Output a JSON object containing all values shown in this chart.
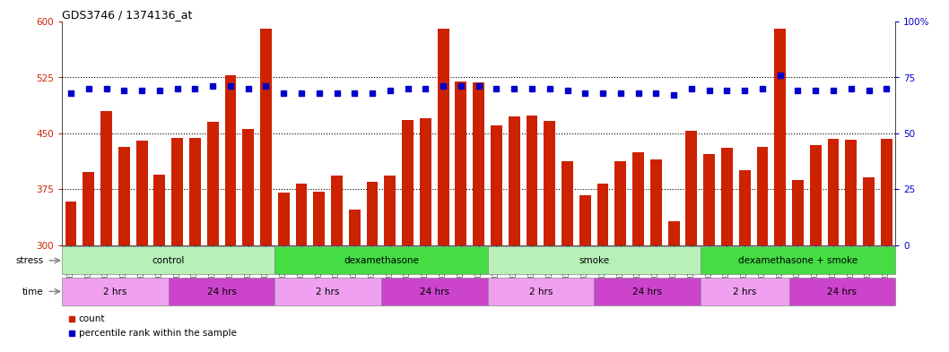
{
  "title": "GDS3746 / 1374136_at",
  "samples": [
    "GSM389536",
    "GSM389537",
    "GSM389538",
    "GSM389539",
    "GSM389540",
    "GSM389541",
    "GSM389530",
    "GSM389531",
    "GSM389532",
    "GSM389533",
    "GSM389534",
    "GSM389535",
    "GSM389560",
    "GSM389561",
    "GSM389562",
    "GSM389563",
    "GSM389564",
    "GSM389565",
    "GSM389554",
    "GSM389555",
    "GSM389556",
    "GSM389557",
    "GSM389558",
    "GSM389559",
    "GSM389571",
    "GSM389572",
    "GSM389573",
    "GSM389574",
    "GSM389575",
    "GSM389576",
    "GSM389566",
    "GSM389567",
    "GSM389568",
    "GSM389569",
    "GSM389570",
    "GSM389548",
    "GSM389549",
    "GSM389550",
    "GSM389551",
    "GSM389552",
    "GSM389553",
    "GSM389542",
    "GSM389543",
    "GSM389544",
    "GSM389545",
    "GSM389546",
    "GSM389547"
  ],
  "counts": [
    358,
    398,
    480,
    432,
    440,
    395,
    444,
    444,
    465,
    528,
    456,
    590,
    370,
    383,
    372,
    393,
    348,
    385,
    393,
    468,
    470,
    590,
    520,
    518,
    460,
    473,
    474,
    466,
    413,
    367,
    383,
    413,
    425,
    415,
    332,
    453,
    422,
    430,
    401,
    432,
    590,
    387,
    434,
    443,
    441,
    391,
    443
  ],
  "percentile_ranks": [
    68,
    70,
    70,
    69,
    69,
    69,
    70,
    70,
    71,
    71,
    70,
    71,
    68,
    68,
    68,
    68,
    68,
    68,
    69,
    70,
    70,
    71,
    71,
    71,
    70,
    70,
    70,
    70,
    69,
    68,
    68,
    68,
    68,
    68,
    67,
    70,
    69,
    69,
    69,
    70,
    76,
    69,
    69,
    69,
    70,
    69,
    70
  ],
  "ylim_left": [
    300,
    600
  ],
  "ylim_right": [
    0,
    100
  ],
  "yticks_left": [
    300,
    375,
    450,
    525,
    600
  ],
  "yticks_right": [
    0,
    25,
    50,
    75,
    100
  ],
  "bar_color": "#cc2200",
  "dot_color": "#0000cc",
  "groups": [
    {
      "label": "control",
      "start": 0,
      "end": 11
    },
    {
      "label": "dexamethasone",
      "start": 12,
      "end": 23
    },
    {
      "label": "smoke",
      "start": 24,
      "end": 35
    },
    {
      "label": "dexamethasone + smoke",
      "start": 36,
      "end": 46
    }
  ],
  "time_groups": [
    {
      "label": "2 hrs",
      "start": 0,
      "end": 5,
      "light": true
    },
    {
      "label": "24 hrs",
      "start": 6,
      "end": 11,
      "light": false
    },
    {
      "label": "2 hrs",
      "start": 12,
      "end": 17,
      "light": true
    },
    {
      "label": "24 hrs",
      "start": 18,
      "end": 23,
      "light": false
    },
    {
      "label": "2 hrs",
      "start": 24,
      "end": 29,
      "light": true
    },
    {
      "label": "24 hrs",
      "start": 30,
      "end": 35,
      "light": false
    },
    {
      "label": "2 hrs",
      "start": 36,
      "end": 40,
      "light": true
    },
    {
      "label": "24 hrs",
      "start": 41,
      "end": 46,
      "light": false
    }
  ],
  "stress_label": "stress",
  "time_label": "time",
  "legend_count_label": "count",
  "legend_pct_label": "percentile rank within the sample",
  "hlines": [
    375,
    450,
    525
  ],
  "bar_color_hex": "#cc2200",
  "dot_color_hex": "#0000cc",
  "stress_green_light": "#b8f0b8",
  "stress_green_dark": "#44cc44",
  "time_pink_light": "#f0a0f0",
  "time_pink_dark": "#cc44cc",
  "background_color": "#ffffff"
}
